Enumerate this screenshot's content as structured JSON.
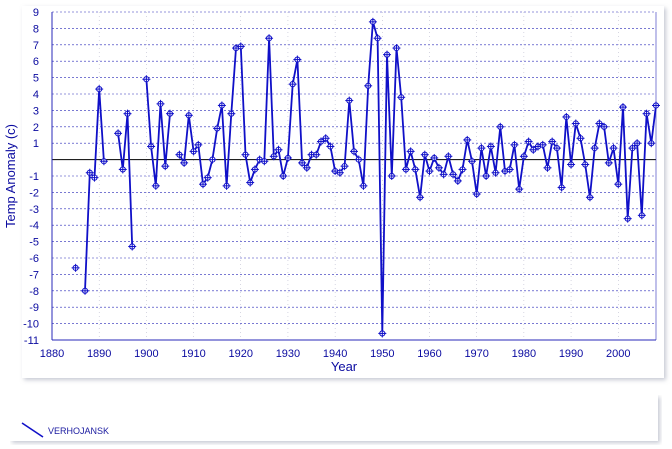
{
  "chart_data": {
    "type": "line",
    "title": "",
    "xlabel": "Year",
    "ylabel": "Temp Anomaly (c)",
    "xlim": [
      1880,
      2008
    ],
    "ylim": [
      -11,
      9
    ],
    "x_ticks": [
      1880,
      1890,
      1900,
      1910,
      1920,
      1930,
      1940,
      1950,
      1960,
      1970,
      1980,
      1990,
      2000
    ],
    "y_ticks": [
      9,
      8,
      7,
      6,
      5,
      4,
      3,
      2,
      1,
      -1,
      -2,
      -3,
      -4,
      -5,
      -6,
      -7,
      -8,
      -9,
      -10,
      -11
    ],
    "grid": true,
    "legend_position": "bottom-left",
    "series": [
      {
        "name": "VERHOJANSK",
        "color": "#1010c8",
        "segments": [
          [
            [
              1885,
              -6.6
            ]
          ],
          [
            [
              1887,
              -8.0
            ],
            [
              1888,
              -0.8
            ],
            [
              1889,
              -1.1
            ],
            [
              1890,
              4.3
            ],
            [
              1891,
              -0.1
            ]
          ],
          [
            [
              1894,
              1.6
            ],
            [
              1895,
              -0.6
            ],
            [
              1896,
              2.8
            ],
            [
              1897,
              -5.3
            ]
          ],
          [
            [
              1900,
              4.9
            ],
            [
              1901,
              0.8
            ],
            [
              1902,
              -1.6
            ],
            [
              1903,
              3.4
            ],
            [
              1904,
              -0.4
            ],
            [
              1905,
              2.8
            ]
          ],
          [
            [
              1907,
              0.3
            ],
            [
              1908,
              -0.2
            ],
            [
              1909,
              2.7
            ],
            [
              1910,
              0.5
            ],
            [
              1911,
              0.9
            ],
            [
              1912,
              -1.5
            ],
            [
              1913,
              -1.1
            ],
            [
              1914,
              0.0
            ],
            [
              1915,
              1.9
            ],
            [
              1916,
              3.3
            ],
            [
              1917,
              -1.6
            ],
            [
              1918,
              2.8
            ],
            [
              1919,
              6.8
            ],
            [
              1920,
              6.9
            ],
            [
              1921,
              0.3
            ],
            [
              1922,
              -1.4
            ],
            [
              1923,
              -0.6
            ],
            [
              1924,
              0.0
            ],
            [
              1925,
              -0.1
            ],
            [
              1926,
              7.4
            ],
            [
              1927,
              0.2
            ],
            [
              1928,
              0.6
            ],
            [
              1929,
              -1.0
            ],
            [
              1930,
              0.1
            ],
            [
              1931,
              4.6
            ],
            [
              1932,
              6.1
            ],
            [
              1933,
              -0.2
            ],
            [
              1934,
              -0.5
            ],
            [
              1935,
              0.3
            ],
            [
              1936,
              0.3
            ],
            [
              1937,
              1.1
            ],
            [
              1938,
              1.3
            ],
            [
              1939,
              0.8
            ],
            [
              1940,
              -0.7
            ],
            [
              1941,
              -0.8
            ],
            [
              1942,
              -0.4
            ],
            [
              1943,
              3.6
            ],
            [
              1944,
              0.5
            ],
            [
              1945,
              0.0
            ],
            [
              1946,
              -1.6
            ],
            [
              1947,
              4.5
            ],
            [
              1948,
              8.4
            ],
            [
              1949,
              7.4
            ],
            [
              1950,
              -10.6
            ],
            [
              1951,
              6.4
            ],
            [
              1952,
              -1.0
            ],
            [
              1953,
              6.8
            ],
            [
              1954,
              3.8
            ],
            [
              1955,
              -0.6
            ],
            [
              1956,
              0.5
            ],
            [
              1957,
              -0.6
            ],
            [
              1958,
              -2.3
            ],
            [
              1959,
              0.3
            ],
            [
              1960,
              -0.7
            ],
            [
              1961,
              0.1
            ],
            [
              1962,
              -0.5
            ],
            [
              1963,
              -0.9
            ],
            [
              1964,
              0.2
            ],
            [
              1965,
              -0.9
            ],
            [
              1966,
              -1.3
            ],
            [
              1967,
              -0.6
            ],
            [
              1968,
              1.2
            ],
            [
              1969,
              -0.1
            ],
            [
              1970,
              -2.1
            ],
            [
              1971,
              0.7
            ],
            [
              1972,
              -1.0
            ],
            [
              1973,
              0.8
            ],
            [
              1974,
              -0.8
            ],
            [
              1975,
              2.0
            ],
            [
              1976,
              -0.7
            ],
            [
              1977,
              -0.6
            ],
            [
              1978,
              0.9
            ],
            [
              1979,
              -1.8
            ],
            [
              1980,
              0.2
            ],
            [
              1981,
              1.1
            ],
            [
              1982,
              0.6
            ],
            [
              1983,
              0.8
            ],
            [
              1984,
              0.9
            ],
            [
              1985,
              -0.5
            ],
            [
              1986,
              1.1
            ],
            [
              1987,
              0.7
            ],
            [
              1988,
              -1.7
            ],
            [
              1989,
              2.6
            ],
            [
              1990,
              -0.3
            ],
            [
              1991,
              2.2
            ],
            [
              1992,
              1.3
            ],
            [
              1993,
              -0.3
            ],
            [
              1994,
              -2.3
            ],
            [
              1995,
              0.7
            ],
            [
              1996,
              2.2
            ],
            [
              1997,
              2.0
            ],
            [
              1998,
              -0.2
            ],
            [
              1999,
              0.7
            ],
            [
              2000,
              -1.5
            ],
            [
              2001,
              3.2
            ],
            [
              2002,
              -3.6
            ],
            [
              2003,
              0.7
            ],
            [
              2004,
              1.0
            ],
            [
              2005,
              -3.4
            ],
            [
              2006,
              2.8
            ],
            [
              2007,
              1.0
            ],
            [
              2008,
              3.3
            ]
          ]
        ]
      }
    ]
  }
}
